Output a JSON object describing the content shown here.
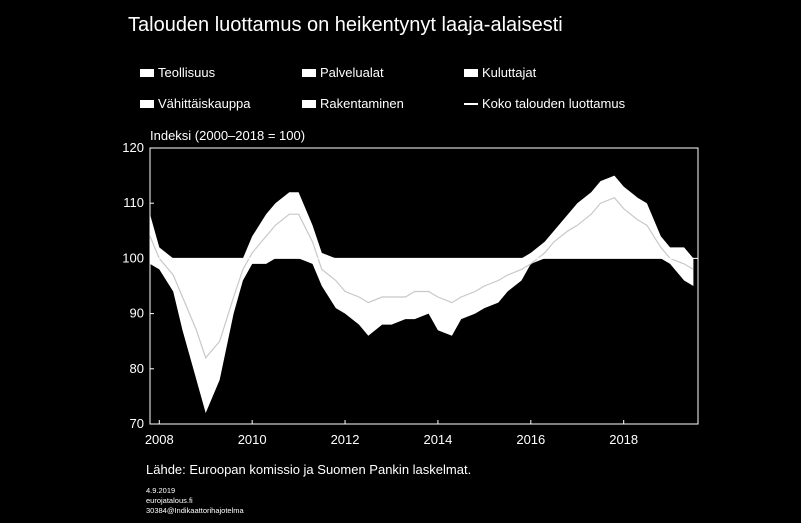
{
  "chart_data": {
    "type": "area",
    "title": "Talouden luottamus on heikentynyt laaja-alaisesti",
    "ylabel": "Indeksi (2000–2018 = 100)",
    "ylim": [
      70,
      120
    ],
    "yticks": [
      70,
      80,
      90,
      100,
      110,
      120
    ],
    "xticks": [
      "2008",
      "2010",
      "2012",
      "2014",
      "2016",
      "2018"
    ],
    "xlim": [
      2007.8,
      2019.6
    ],
    "baseline": 100,
    "legend": [
      "Teollisuus",
      "Palvelualat",
      "Kuluttajat",
      "Vähittäiskauppa",
      "Rakentaminen",
      "Koko talouden luottamus"
    ],
    "envelope": {
      "x": [
        2007.8,
        2008.0,
        2008.3,
        2008.5,
        2008.8,
        2009.0,
        2009.3,
        2009.6,
        2009.8,
        2010.0,
        2010.3,
        2010.5,
        2010.8,
        2011.0,
        2011.3,
        2011.5,
        2011.8,
        2012.0,
        2012.3,
        2012.5,
        2012.8,
        2013.0,
        2013.3,
        2013.5,
        2013.8,
        2014.0,
        2014.3,
        2014.5,
        2014.8,
        2015.0,
        2015.3,
        2015.5,
        2015.8,
        2016.0,
        2016.3,
        2016.5,
        2016.8,
        2017.0,
        2017.3,
        2017.5,
        2017.8,
        2018.0,
        2018.3,
        2018.5,
        2018.8,
        2019.0,
        2019.3,
        2019.5
      ],
      "upper": [
        108,
        102,
        100,
        100,
        100,
        100,
        100,
        100,
        100,
        104,
        108,
        110,
        112,
        112,
        106,
        101,
        100,
        100,
        100,
        100,
        100,
        100,
        100,
        100,
        100,
        100,
        100,
        100,
        100,
        100,
        100,
        100,
        100,
        101,
        103,
        105,
        108,
        110,
        112,
        114,
        115,
        113,
        111,
        110,
        104,
        102,
        102,
        100
      ],
      "lower": [
        99,
        98,
        94,
        87,
        78,
        72,
        78,
        90,
        96,
        99,
        99,
        100,
        100,
        100,
        99,
        95,
        91,
        90,
        88,
        86,
        88,
        88,
        89,
        89,
        90,
        87,
        86,
        89,
        90,
        91,
        92,
        94,
        96,
        99,
        100,
        100,
        100,
        100,
        100,
        100,
        100,
        100,
        100,
        100,
        100,
        99,
        96,
        95
      ]
    },
    "series": [
      {
        "name": "Koko talouden luottamus",
        "x": [
          2007.8,
          2008.0,
          2008.3,
          2008.5,
          2008.8,
          2009.0,
          2009.3,
          2009.6,
          2009.8,
          2010.0,
          2010.3,
          2010.5,
          2010.8,
          2011.0,
          2011.3,
          2011.5,
          2011.8,
          2012.0,
          2012.3,
          2012.5,
          2012.8,
          2013.0,
          2013.3,
          2013.5,
          2013.8,
          2014.0,
          2014.3,
          2014.5,
          2014.8,
          2015.0,
          2015.3,
          2015.5,
          2015.8,
          2016.0,
          2016.3,
          2016.5,
          2016.8,
          2017.0,
          2017.3,
          2017.5,
          2017.8,
          2018.0,
          2018.3,
          2018.5,
          2018.8,
          2019.0,
          2019.3,
          2019.5
        ],
        "values": [
          104,
          100,
          97,
          93,
          87,
          82,
          85,
          93,
          98,
          101,
          104,
          106,
          108,
          108,
          103,
          98,
          96,
          94,
          93,
          92,
          93,
          93,
          93,
          94,
          94,
          93,
          92,
          93,
          94,
          95,
          96,
          97,
          98,
          99,
          101,
          103,
          105,
          106,
          108,
          110,
          111,
          109,
          107,
          106,
          102,
          100,
          99,
          98
        ]
      }
    ]
  },
  "footer": {
    "source": "Lähde: Euroopan komissio ja Suomen Pankin laskelmat.",
    "date": "4.9.2019",
    "site": "eurojatalous.fi",
    "code": "30384@Indikaattorihajotelma"
  }
}
